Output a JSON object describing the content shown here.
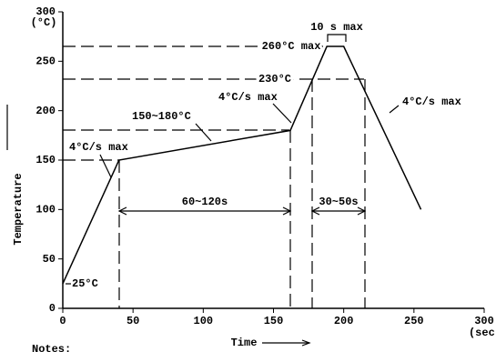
{
  "chart_data": {
    "type": "line",
    "y_unit": "(°C)",
    "x_unit": "(sec)",
    "y_label": "Temperature",
    "x_label": "Time",
    "x": [
      0,
      40,
      162,
      188,
      200,
      255
    ],
    "series": [
      {
        "color": "#000000",
        "values": [
          25,
          150,
          180,
          265,
          265,
          100
        ]
      }
    ],
    "xlim": [
      0,
      300
    ],
    "xticks": [
      0,
      50,
      100,
      150,
      200,
      250,
      300
    ],
    "ylim": [
      0,
      300
    ],
    "yticks": [
      0,
      50,
      100,
      150,
      200,
      250,
      300
    ],
    "annotations": [
      "10 s max",
      "260°C max",
      "230°C",
      "4°C/s max",
      "150~180°C",
      "4°C/s max",
      "4°C/s max",
      "60~120s",
      "30~50s",
      "25°C"
    ],
    "notes": "Notes:"
  }
}
